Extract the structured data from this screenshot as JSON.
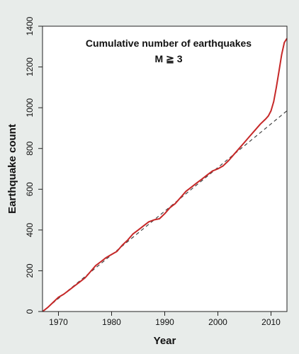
{
  "chart_data": {
    "type": "line",
    "title": "Cumulative number of earthquakes",
    "subtitle": "M ≧ 3",
    "xlabel": "Year",
    "ylabel": "Earthquake count",
    "xlim": [
      1967,
      2013
    ],
    "ylim": [
      0,
      1400
    ],
    "xticks": [
      1970,
      1980,
      1990,
      2000,
      2010
    ],
    "yticks": [
      0,
      200,
      400,
      600,
      800,
      1000,
      1200,
      1400
    ],
    "grid": false,
    "series": [
      {
        "style": "solid",
        "color": "#c62828",
        "x": [
          1967,
          1968,
          1969,
          1970,
          1971,
          1972,
          1973,
          1974,
          1975,
          1976,
          1977,
          1978,
          1979,
          1980,
          1981,
          1982,
          1983,
          1984,
          1985,
          1986,
          1987,
          1988,
          1989,
          1990,
          1991,
          1992,
          1993,
          1994,
          1995,
          1996,
          1997,
          1998,
          1999,
          2000,
          2001,
          2002,
          2003,
          2004,
          2005,
          2006,
          2007,
          2008,
          2009,
          2009.5,
          2010,
          2010.5,
          2011,
          2011.5,
          2012,
          2012.5,
          2013
        ],
        "y": [
          0,
          20,
          45,
          70,
          85,
          105,
          125,
          145,
          165,
          195,
          225,
          245,
          265,
          280,
          295,
          325,
          350,
          380,
          400,
          420,
          440,
          450,
          455,
          480,
          510,
          530,
          560,
          590,
          610,
          630,
          650,
          670,
          690,
          700,
          715,
          740,
          770,
          800,
          830,
          860,
          890,
          920,
          945,
          960,
          985,
          1030,
          1100,
          1180,
          1260,
          1320,
          1340
        ]
      },
      {
        "style": "dashed",
        "color": "#444444",
        "x": [
          1967,
          2013
        ],
        "y": [
          0,
          985
        ]
      }
    ]
  }
}
